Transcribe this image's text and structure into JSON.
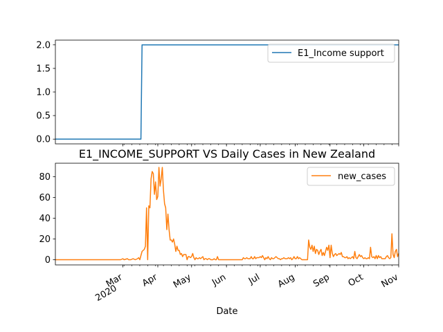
{
  "chart_data": [
    {
      "type": "line",
      "title": "",
      "xlabel": "",
      "ylabel": "",
      "ylim": [
        -0.1,
        2.1
      ],
      "yticks": [
        0.0,
        0.5,
        1.0,
        1.5,
        2.0
      ],
      "ytick_labels": [
        "0.0",
        "0.5",
        "1.0",
        "1.5",
        "2.0"
      ],
      "xlim": [
        "2020-01-01",
        "2020-11-01"
      ],
      "legend_position": "top-right",
      "series": [
        {
          "name": "E1_Income support",
          "color": "#1f77b4",
          "points": [
            [
              "2020-01-01",
              0
            ],
            [
              "2020-03-17",
              0
            ],
            [
              "2020-03-18",
              2
            ],
            [
              "2020-11-01",
              2
            ]
          ]
        }
      ]
    },
    {
      "type": "line",
      "title": "E1_INCOME_SUPPORT VS Daily Cases in New Zealand",
      "xlabel": "Date",
      "ylabel": "",
      "ylim": [
        -5,
        93
      ],
      "yticks": [
        0,
        20,
        40,
        60,
        80
      ],
      "ytick_labels": [
        "0",
        "20",
        "40",
        "60",
        "80"
      ],
      "xlim": [
        "2020-01-01",
        "2020-11-01"
      ],
      "xtick_dates": [
        "2020-03-01",
        "2020-04-01",
        "2020-05-01",
        "2020-06-01",
        "2020-07-01",
        "2020-08-01",
        "2020-09-01",
        "2020-10-01",
        "2020-11-01"
      ],
      "xtick_labels": [
        "Mar\n2020",
        "Apr",
        "May",
        "Jun",
        "Jul",
        "Aug",
        "Sep",
        "Oct",
        "Nov"
      ],
      "legend_position": "top-right",
      "series": [
        {
          "name": "new_cases",
          "color": "#ff7f0e",
          "points": [
            [
              "2020-01-01",
              0
            ],
            [
              "2020-02-28",
              0
            ],
            [
              "2020-03-01",
              1
            ],
            [
              "2020-03-02",
              0
            ],
            [
              "2020-03-05",
              1
            ],
            [
              "2020-03-06",
              0
            ],
            [
              "2020-03-08",
              0
            ],
            [
              "2020-03-10",
              1
            ],
            [
              "2020-03-12",
              0
            ],
            [
              "2020-03-14",
              1
            ],
            [
              "2020-03-15",
              2
            ],
            [
              "2020-03-16",
              0
            ],
            [
              "2020-03-17",
              4
            ],
            [
              "2020-03-18",
              8
            ],
            [
              "2020-03-19",
              9
            ],
            [
              "2020-03-20",
              10
            ],
            [
              "2020-03-21",
              13
            ],
            [
              "2020-03-22",
              50
            ],
            [
              "2020-03-23",
              0
            ],
            [
              "2020-03-24",
              52
            ],
            [
              "2020-03-25",
              50
            ],
            [
              "2020-03-26",
              78
            ],
            [
              "2020-03-27",
              85
            ],
            [
              "2020-03-28",
              83
            ],
            [
              "2020-03-29",
              63
            ],
            [
              "2020-03-30",
              75
            ],
            [
              "2020-03-31",
              58
            ],
            [
              "2020-04-01",
              61
            ],
            [
              "2020-04-02",
              89
            ],
            [
              "2020-04-03",
              71
            ],
            [
              "2020-04-04",
              78
            ],
            [
              "2020-04-05",
              89
            ],
            [
              "2020-04-06",
              67
            ],
            [
              "2020-04-07",
              54
            ],
            [
              "2020-04-08",
              50
            ],
            [
              "2020-04-09",
              29
            ],
            [
              "2020-04-10",
              44
            ],
            [
              "2020-04-11",
              29
            ],
            [
              "2020-04-12",
              19
            ],
            [
              "2020-04-13",
              19
            ],
            [
              "2020-04-14",
              17
            ],
            [
              "2020-04-15",
              20
            ],
            [
              "2020-04-16",
              15
            ],
            [
              "2020-04-17",
              8
            ],
            [
              "2020-04-18",
              13
            ],
            [
              "2020-04-19",
              9
            ],
            [
              "2020-04-20",
              9
            ],
            [
              "2020-04-21",
              5
            ],
            [
              "2020-04-22",
              6
            ],
            [
              "2020-04-23",
              3
            ],
            [
              "2020-04-24",
              5
            ],
            [
              "2020-04-25",
              5
            ],
            [
              "2020-04-26",
              5
            ],
            [
              "2020-04-27",
              0
            ],
            [
              "2020-04-28",
              3
            ],
            [
              "2020-04-29",
              3
            ],
            [
              "2020-04-30",
              2
            ],
            [
              "2020-05-01",
              3
            ],
            [
              "2020-05-02",
              6
            ],
            [
              "2020-05-03",
              2
            ],
            [
              "2020-05-04",
              0
            ],
            [
              "2020-05-05",
              2
            ],
            [
              "2020-05-06",
              1
            ],
            [
              "2020-05-07",
              1
            ],
            [
              "2020-05-08",
              2
            ],
            [
              "2020-05-09",
              1
            ],
            [
              "2020-05-10",
              2
            ],
            [
              "2020-05-11",
              3
            ],
            [
              "2020-05-12",
              0
            ],
            [
              "2020-05-13",
              1
            ],
            [
              "2020-05-14",
              1
            ],
            [
              "2020-05-15",
              0
            ],
            [
              "2020-05-16",
              1
            ],
            [
              "2020-05-17",
              1
            ],
            [
              "2020-05-18",
              0
            ],
            [
              "2020-05-19",
              0
            ],
            [
              "2020-05-20",
              0
            ],
            [
              "2020-05-21",
              1
            ],
            [
              "2020-05-22",
              0
            ],
            [
              "2020-05-23",
              0
            ],
            [
              "2020-05-24",
              3
            ],
            [
              "2020-05-25",
              0
            ],
            [
              "2020-05-26",
              0
            ],
            [
              "2020-06-01",
              0
            ],
            [
              "2020-06-08",
              0
            ],
            [
              "2020-06-15",
              0
            ],
            [
              "2020-06-16",
              2
            ],
            [
              "2020-06-17",
              1
            ],
            [
              "2020-06-18",
              1
            ],
            [
              "2020-06-19",
              2
            ],
            [
              "2020-06-20",
              1
            ],
            [
              "2020-06-21",
              1
            ],
            [
              "2020-06-22",
              1
            ],
            [
              "2020-06-23",
              3
            ],
            [
              "2020-06-24",
              1
            ],
            [
              "2020-06-25",
              1
            ],
            [
              "2020-06-26",
              3
            ],
            [
              "2020-06-27",
              1
            ],
            [
              "2020-06-28",
              2
            ],
            [
              "2020-06-29",
              2
            ],
            [
              "2020-06-30",
              2
            ],
            [
              "2020-07-01",
              3
            ],
            [
              "2020-07-02",
              2
            ],
            [
              "2020-07-03",
              4
            ],
            [
              "2020-07-04",
              2
            ],
            [
              "2020-07-05",
              0
            ],
            [
              "2020-07-06",
              2
            ],
            [
              "2020-07-07",
              1
            ],
            [
              "2020-07-08",
              3
            ],
            [
              "2020-07-09",
              1
            ],
            [
              "2020-07-10",
              0
            ],
            [
              "2020-07-11",
              2
            ],
            [
              "2020-07-12",
              1
            ],
            [
              "2020-07-13",
              1
            ],
            [
              "2020-07-14",
              2
            ],
            [
              "2020-07-15",
              3
            ],
            [
              "2020-07-16",
              2
            ],
            [
              "2020-07-17",
              1
            ],
            [
              "2020-07-18",
              1
            ],
            [
              "2020-07-19",
              0
            ],
            [
              "2020-07-20",
              1
            ],
            [
              "2020-07-21",
              1
            ],
            [
              "2020-07-22",
              2
            ],
            [
              "2020-07-23",
              1
            ],
            [
              "2020-07-24",
              1
            ],
            [
              "2020-07-25",
              1
            ],
            [
              "2020-07-26",
              2
            ],
            [
              "2020-07-27",
              1
            ],
            [
              "2020-07-28",
              2
            ],
            [
              "2020-07-29",
              0
            ],
            [
              "2020-07-30",
              1
            ],
            [
              "2020-07-31",
              3
            ],
            [
              "2020-08-01",
              1
            ],
            [
              "2020-08-02",
              1
            ],
            [
              "2020-08-03",
              3
            ],
            [
              "2020-08-04",
              1
            ],
            [
              "2020-08-05",
              2
            ],
            [
              "2020-08-06",
              1
            ],
            [
              "2020-08-07",
              0
            ],
            [
              "2020-08-08",
              0
            ],
            [
              "2020-08-09",
              0
            ],
            [
              "2020-08-10",
              0
            ],
            [
              "2020-08-11",
              0
            ],
            [
              "2020-08-12",
              0
            ],
            [
              "2020-08-13",
              19
            ],
            [
              "2020-08-14",
              12
            ],
            [
              "2020-08-15",
              10
            ],
            [
              "2020-08-16",
              14
            ],
            [
              "2020-08-17",
              8
            ],
            [
              "2020-08-18",
              13
            ],
            [
              "2020-08-19",
              6
            ],
            [
              "2020-08-20",
              10
            ],
            [
              "2020-08-21",
              9
            ],
            [
              "2020-08-22",
              5
            ],
            [
              "2020-08-23",
              8
            ],
            [
              "2020-08-24",
              10
            ],
            [
              "2020-08-25",
              4
            ],
            [
              "2020-08-26",
              7
            ],
            [
              "2020-08-27",
              4
            ],
            [
              "2020-08-28",
              8
            ],
            [
              "2020-08-29",
              12
            ],
            [
              "2020-08-30",
              9
            ],
            [
              "2020-08-31",
              14
            ],
            [
              "2020-09-01",
              2
            ],
            [
              "2020-09-02",
              14
            ],
            [
              "2020-09-03",
              6
            ],
            [
              "2020-09-04",
              3
            ],
            [
              "2020-09-05",
              5
            ],
            [
              "2020-09-06",
              6
            ],
            [
              "2020-09-07",
              4
            ],
            [
              "2020-09-08",
              5
            ],
            [
              "2020-09-09",
              6
            ],
            [
              "2020-09-10",
              5
            ],
            [
              "2020-09-11",
              7
            ],
            [
              "2020-09-12",
              3
            ],
            [
              "2020-09-13",
              3
            ],
            [
              "2020-09-14",
              2
            ],
            [
              "2020-09-15",
              2
            ],
            [
              "2020-09-16",
              3
            ],
            [
              "2020-09-17",
              1
            ],
            [
              "2020-09-18",
              2
            ],
            [
              "2020-09-19",
              1
            ],
            [
              "2020-09-20",
              2
            ],
            [
              "2020-09-21",
              3
            ],
            [
              "2020-09-22",
              1
            ],
            [
              "2020-09-23",
              8
            ],
            [
              "2020-09-24",
              2
            ],
            [
              "2020-09-25",
              1
            ],
            [
              "2020-09-26",
              3
            ],
            [
              "2020-09-27",
              5
            ],
            [
              "2020-09-28",
              3
            ],
            [
              "2020-09-29",
              4
            ],
            [
              "2020-09-30",
              2
            ],
            [
              "2020-10-01",
              1
            ],
            [
              "2020-10-02",
              2
            ],
            [
              "2020-10-03",
              1
            ],
            [
              "2020-10-04",
              1
            ],
            [
              "2020-10-05",
              2
            ],
            [
              "2020-10-06",
              1
            ],
            [
              "2020-10-07",
              12
            ],
            [
              "2020-10-08",
              3
            ],
            [
              "2020-10-09",
              2
            ],
            [
              "2020-10-10",
              3
            ],
            [
              "2020-10-11",
              1
            ],
            [
              "2020-10-12",
              4
            ],
            [
              "2020-10-13",
              1
            ],
            [
              "2020-10-14",
              4
            ],
            [
              "2020-10-15",
              2
            ],
            [
              "2020-10-16",
              3
            ],
            [
              "2020-10-17",
              1
            ],
            [
              "2020-10-18",
              1
            ],
            [
              "2020-10-19",
              1
            ],
            [
              "2020-10-20",
              1
            ],
            [
              "2020-10-21",
              3
            ],
            [
              "2020-10-22",
              4
            ],
            [
              "2020-10-23",
              2
            ],
            [
              "2020-10-24",
              1
            ],
            [
              "2020-10-25",
              2
            ],
            [
              "2020-10-26",
              25
            ],
            [
              "2020-10-27",
              5
            ],
            [
              "2020-10-28",
              2
            ],
            [
              "2020-10-29",
              8
            ],
            [
              "2020-10-30",
              10
            ],
            [
              "2020-10-31",
              3
            ],
            [
              "2020-11-01",
              6
            ]
          ]
        }
      ]
    }
  ]
}
